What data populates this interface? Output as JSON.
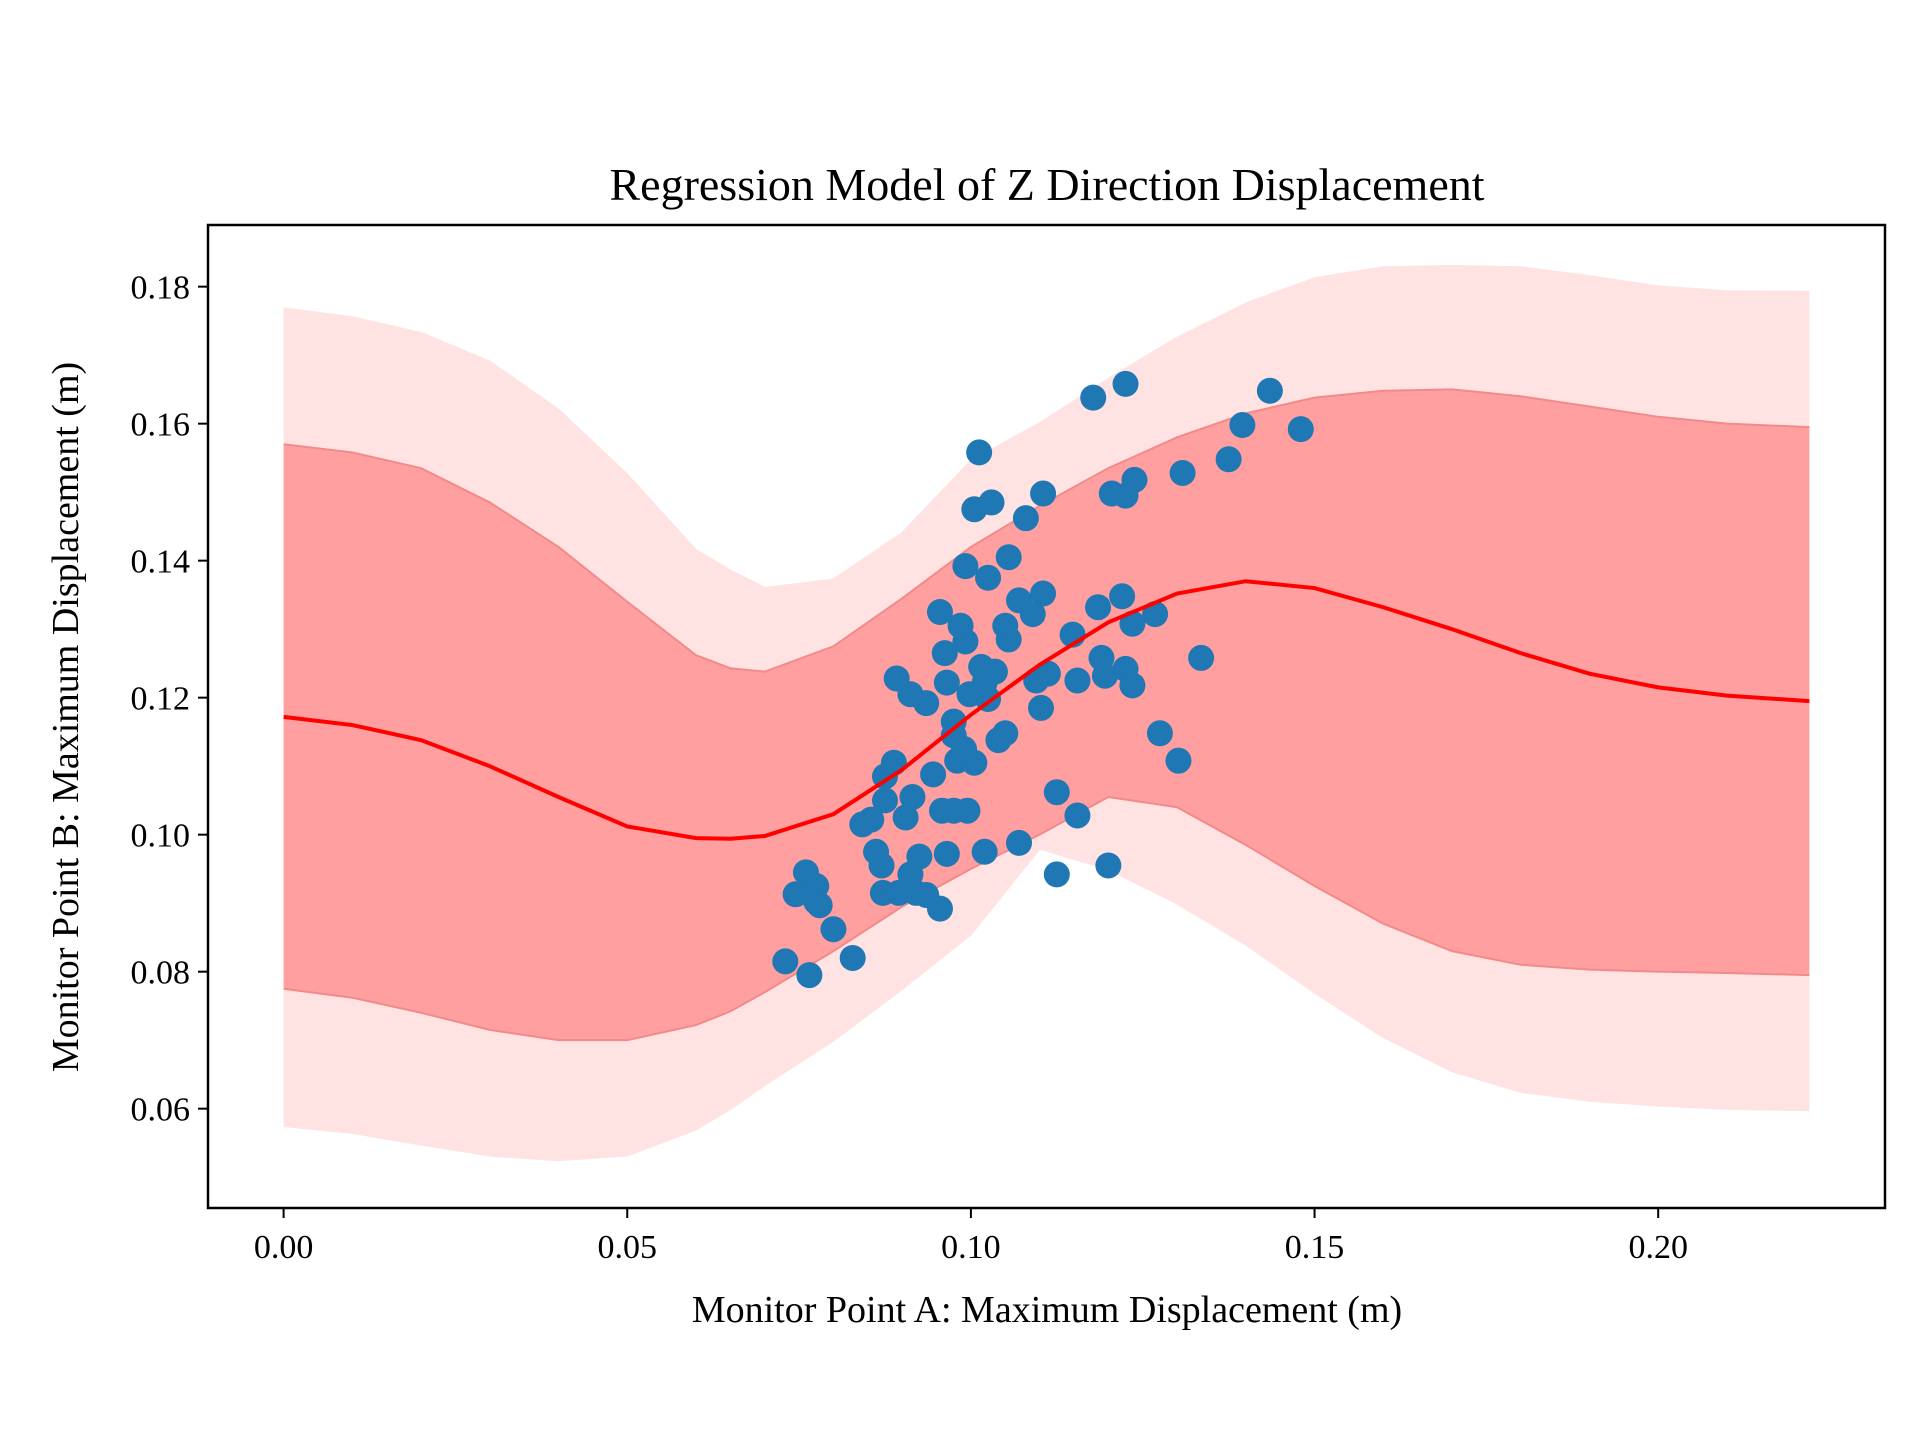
{
  "chart_data": {
    "type": "scatter",
    "title": "Regression Model of Z Direction Displacement",
    "xlabel": "Monitor Point A: Maximum Displacement (m)",
    "ylabel": "Monitor Point B: Maximum Displacement (m)",
    "xlim": [
      -0.011,
      0.233
    ],
    "ylim": [
      0.0455,
      0.189
    ],
    "xticks": [
      "0.00",
      "0.05",
      "0.10",
      "0.15",
      "0.20"
    ],
    "yticks": [
      "0.06",
      "0.08",
      "0.10",
      "0.12",
      "0.14",
      "0.16",
      "0.18"
    ],
    "grid": false,
    "colors": {
      "points": "#1f77b4",
      "mean_line": "#ff0000",
      "band_inner": "#ff9f9f",
      "band_outer": "#ffe3e3",
      "band_edge": "#f28a8a"
    },
    "regression": {
      "x": [
        0.0,
        0.01,
        0.02,
        0.03,
        0.04,
        0.05,
        0.06,
        0.065,
        0.07,
        0.08,
        0.09,
        0.1,
        0.11,
        0.12,
        0.13,
        0.14,
        0.15,
        0.16,
        0.17,
        0.18,
        0.19,
        0.2,
        0.21,
        0.222
      ],
      "mean": [
        0.1172,
        0.116,
        0.1138,
        0.11,
        0.1055,
        0.1012,
        0.0995,
        0.0994,
        0.0998,
        0.103,
        0.1095,
        0.1175,
        0.1248,
        0.131,
        0.1352,
        0.137,
        0.136,
        0.1332,
        0.13,
        0.1265,
        0.1235,
        0.1215,
        0.1203,
        0.1195
      ],
      "inner_upper": [
        0.157,
        0.1558,
        0.1535,
        0.1485,
        0.142,
        0.134,
        0.1262,
        0.1243,
        0.1238,
        0.1275,
        0.1345,
        0.142,
        0.148,
        0.1535,
        0.158,
        0.1615,
        0.1638,
        0.1648,
        0.165,
        0.164,
        0.1625,
        0.161,
        0.16,
        0.1595
      ],
      "inner_lower": [
        0.0775,
        0.0762,
        0.074,
        0.0715,
        0.07,
        0.07,
        0.0722,
        0.0742,
        0.077,
        0.083,
        0.0895,
        0.095,
        0.1,
        0.1055,
        0.104,
        0.0985,
        0.0925,
        0.087,
        0.083,
        0.081,
        0.0803,
        0.08,
        0.0798,
        0.0795
      ],
      "outer_upper": [
        0.1768,
        0.1755,
        0.1732,
        0.169,
        0.162,
        0.1525,
        0.1415,
        0.1385,
        0.136,
        0.1372,
        0.144,
        0.1545,
        0.16,
        0.1665,
        0.1725,
        0.1775,
        0.1812,
        0.1828,
        0.183,
        0.1828,
        0.1815,
        0.18,
        0.1793,
        0.1792
      ],
      "outer_lower": [
        0.0575,
        0.0565,
        0.0548,
        0.0532,
        0.0525,
        0.0532,
        0.057,
        0.06,
        0.0635,
        0.07,
        0.0775,
        0.0855,
        0.098,
        0.095,
        0.09,
        0.084,
        0.077,
        0.0705,
        0.0655,
        0.0625,
        0.0612,
        0.0605,
        0.06,
        0.0598
      ]
    },
    "points": [
      [
        0.073,
        0.0815
      ],
      [
        0.0765,
        0.0795
      ],
      [
        0.0828,
        0.082
      ],
      [
        0.08,
        0.0862
      ],
      [
        0.0745,
        0.0913
      ],
      [
        0.076,
        0.0945
      ],
      [
        0.0775,
        0.0925
      ],
      [
        0.078,
        0.0897
      ],
      [
        0.0775,
        0.0902
      ],
      [
        0.0872,
        0.0915
      ],
      [
        0.0842,
        0.1015
      ],
      [
        0.0855,
        0.1022
      ],
      [
        0.0862,
        0.0975
      ],
      [
        0.087,
        0.0955
      ],
      [
        0.0875,
        0.1085
      ],
      [
        0.0875,
        0.105
      ],
      [
        0.0888,
        0.1105
      ],
      [
        0.0895,
        0.0915
      ],
      [
        0.0905,
        0.1025
      ],
      [
        0.0912,
        0.0942
      ],
      [
        0.0915,
        0.1055
      ],
      [
        0.092,
        0.0915
      ],
      [
        0.0925,
        0.0968
      ],
      [
        0.0935,
        0.0912
      ],
      [
        0.0945,
        0.1088
      ],
      [
        0.0955,
        0.0892
      ],
      [
        0.0958,
        0.1035
      ],
      [
        0.0965,
        0.0972
      ],
      [
        0.0975,
        0.1035
      ],
      [
        0.0975,
        0.1145
      ],
      [
        0.0975,
        0.1165
      ],
      [
        0.098,
        0.1108
      ],
      [
        0.099,
        0.1125
      ],
      [
        0.0995,
        0.1035
      ],
      [
        0.1005,
        0.1105
      ],
      [
        0.102,
        0.0975
      ],
      [
        0.104,
        0.1138
      ],
      [
        0.105,
        0.1148
      ],
      [
        0.107,
        0.0988
      ],
      [
        0.1095,
        0.1225
      ],
      [
        0.1102,
        0.1185
      ],
      [
        0.1112,
        0.1235
      ],
      [
        0.1125,
        0.0942
      ],
      [
        0.1125,
        0.1062
      ],
      [
        0.1155,
        0.1028
      ],
      [
        0.1155,
        0.1225
      ],
      [
        0.119,
        0.1258
      ],
      [
        0.1195,
        0.1232
      ],
      [
        0.12,
        0.0955
      ],
      [
        0.1225,
        0.1242
      ],
      [
        0.1235,
        0.1218
      ],
      [
        0.1275,
        0.1148
      ],
      [
        0.1302,
        0.1108
      ],
      [
        0.1335,
        0.1258
      ],
      [
        0.1268,
        0.1322
      ],
      [
        0.1235,
        0.1308
      ],
      [
        0.122,
        0.1348
      ],
      [
        0.1185,
        0.1332
      ],
      [
        0.1148,
        0.1292
      ],
      [
        0.1105,
        0.1352
      ],
      [
        0.107,
        0.1342
      ],
      [
        0.109,
        0.1322
      ],
      [
        0.1055,
        0.1285
      ],
      [
        0.105,
        0.1305
      ],
      [
        0.1035,
        0.1238
      ],
      [
        0.102,
        0.1222
      ],
      [
        0.1015,
        0.1245
      ],
      [
        0.1025,
        0.1198
      ],
      [
        0.0998,
        0.1205
      ],
      [
        0.0992,
        0.1282
      ],
      [
        0.0985,
        0.1305
      ],
      [
        0.0962,
        0.1265
      ],
      [
        0.0955,
        0.1325
      ],
      [
        0.0965,
        0.1222
      ],
      [
        0.0935,
        0.1192
      ],
      [
        0.0912,
        0.1205
      ],
      [
        0.0892,
        0.1228
      ],
      [
        0.0992,
        0.1392
      ],
      [
        0.1025,
        0.1375
      ],
      [
        0.1055,
        0.1405
      ],
      [
        0.1005,
        0.1475
      ],
      [
        0.103,
        0.1485
      ],
      [
        0.108,
        0.1462
      ],
      [
        0.1105,
        0.1498
      ],
      [
        0.1012,
        0.1558
      ],
      [
        0.1178,
        0.1638
      ],
      [
        0.1225,
        0.1658
      ],
      [
        0.1205,
        0.1498
      ],
      [
        0.1225,
        0.1495
      ],
      [
        0.1238,
        0.1518
      ],
      [
        0.1308,
        0.1528
      ],
      [
        0.1375,
        0.1548
      ],
      [
        0.1395,
        0.1598
      ],
      [
        0.1435,
        0.1648
      ],
      [
        0.148,
        0.1592
      ]
    ]
  }
}
